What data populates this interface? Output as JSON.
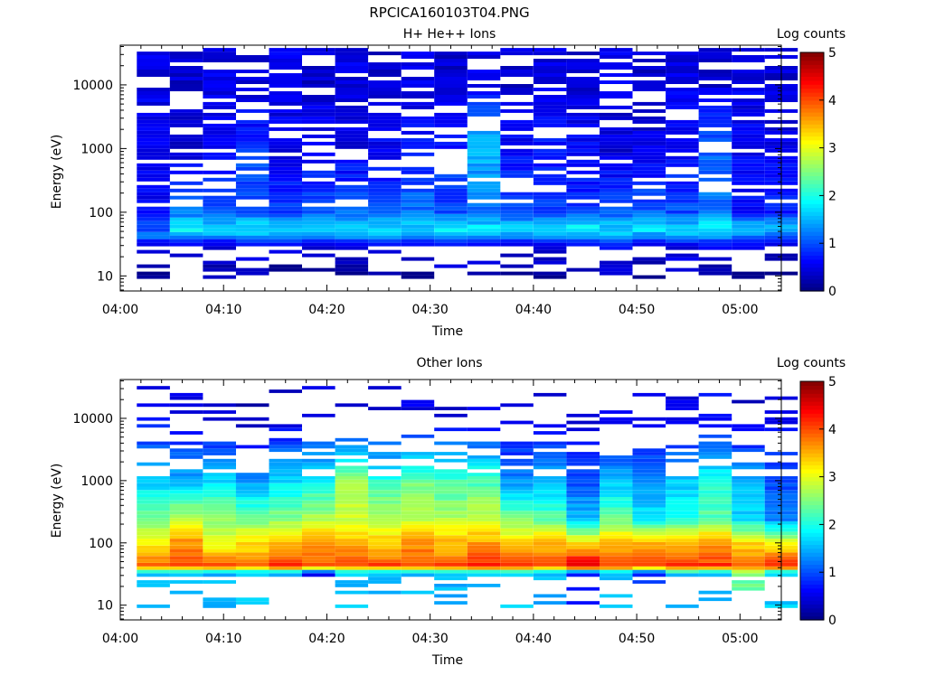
{
  "figure_title": "RPCICA160103T04.PNG",
  "chart_data": [
    {
      "type": "heatmap",
      "title": "H+ He++ Ions",
      "xlabel": "Time",
      "ylabel": "Energy (eV)",
      "x_tick_labels": [
        "04:00",
        "04:10",
        "04:20",
        "04:30",
        "04:40",
        "04:50",
        "05:00"
      ],
      "y_tick_labels": [
        "10",
        "100",
        "1000",
        "10000"
      ],
      "y_tick_values": [
        10,
        100,
        1000,
        10000
      ],
      "y_scale": "log",
      "ylim_eV": [
        5.8,
        42000
      ],
      "xlim_min": [
        0,
        64
      ],
      "time_bins_start_min": [
        1.6,
        4.8,
        8.0,
        11.2,
        14.4,
        17.6,
        20.8,
        24.0,
        27.2,
        30.4,
        33.6,
        36.8,
        40.0,
        43.2,
        46.4,
        49.6,
        52.8,
        56.0,
        59.2,
        62.4
      ],
      "energy_bands_eV": [
        10,
        15,
        25,
        33,
        42,
        55,
        75,
        100,
        150,
        250,
        400,
        700,
        1000,
        1500,
        2500,
        5000,
        10000,
        20000,
        35000
      ],
      "log_counts_summary": {
        "10": [
          0,
          0.3,
          0.2,
          0.2,
          0,
          0,
          0.1,
          0.2,
          0,
          0.2,
          0.2,
          0.2,
          0.2,
          0,
          0.3,
          0,
          0.3,
          0.2,
          0,
          0
        ],
        "33": [
          0.5,
          0.6,
          0.6,
          0.6,
          0.7,
          0.6,
          0.6,
          0.7,
          0.6,
          0.7,
          0.6,
          0.6,
          0.6,
          0.6,
          0.7,
          0.6,
          0.6,
          0.7,
          0.6,
          0.5
        ],
        "42": [
          1.2,
          1.5,
          1.4,
          1.5,
          1.4,
          1.3,
          1.5,
          1.4,
          1.5,
          1.3,
          1.4,
          1.5,
          1.4,
          1.4,
          1.5,
          1.3,
          1.5,
          1.4,
          1.3,
          1.2
        ],
        "55": [
          1.0,
          1.9,
          1.6,
          1.8,
          1.7,
          1.7,
          1.6,
          1.8,
          1.7,
          1.9,
          1.8,
          1.6,
          1.8,
          1.9,
          1.7,
          1.8,
          1.7,
          1.9,
          1.7,
          1.6
        ],
        "100": [
          0.6,
          1.2,
          1.0,
          1.1,
          0.9,
          1.0,
          1.1,
          1.0,
          1.2,
          1.0,
          1.1,
          1.0,
          1.0,
          0.9,
          1.0,
          1.1,
          1.0,
          1.2,
          0.7,
          0.8
        ],
        "1000": [
          0.5,
          0.4,
          0.5,
          0.9,
          0.5,
          0.6,
          0.5,
          0.6,
          0.7,
          0.8,
          1.6,
          0.6,
          0.7,
          0.6,
          0.4,
          0.5,
          0.6,
          1.1,
          0.6,
          0.5
        ],
        "10000": [
          0.5,
          0.4,
          0.5,
          0.4,
          0.5,
          0.4,
          0.5,
          0.4,
          0.5,
          0.4,
          0.5,
          0.4,
          0.5,
          0.4,
          0.5,
          0.4,
          0.5,
          0.4,
          0.5,
          0.4
        ]
      },
      "colorbar": {
        "label": "Log counts",
        "range": [
          0,
          5
        ],
        "ticks": [
          "0",
          "1",
          "2",
          "3",
          "4",
          "5"
        ]
      }
    },
    {
      "type": "heatmap",
      "title": "Other Ions",
      "xlabel": "Time",
      "ylabel": "Energy (eV)",
      "x_tick_labels": [
        "04:00",
        "04:10",
        "04:20",
        "04:30",
        "04:40",
        "04:50",
        "05:00"
      ],
      "y_tick_labels": [
        "10",
        "100",
        "1000",
        "10000"
      ],
      "y_tick_values": [
        10,
        100,
        1000,
        10000
      ],
      "y_scale": "log",
      "ylim_eV": [
        5.8,
        42000
      ],
      "xlim_min": [
        0,
        64
      ],
      "time_bins_start_min": [
        1.6,
        4.8,
        8.0,
        11.2,
        14.4,
        17.6,
        20.8,
        24.0,
        27.2,
        30.4,
        33.6,
        36.8,
        40.0,
        43.2,
        46.4,
        49.6,
        52.8,
        56.0,
        59.2,
        62.4
      ],
      "energy_bands_eV": [
        10,
        15,
        25,
        33,
        42,
        55,
        75,
        100,
        150,
        250,
        400,
        700,
        1000,
        1500,
        2500,
        5000,
        10000,
        20000,
        35000
      ],
      "log_counts_summary": {
        "33": [
          1.5,
          1.6,
          1.5,
          1.6,
          1.5,
          0.5,
          1.6,
          1.5,
          1.6,
          1.5,
          1.6,
          1.6,
          1.5,
          0.6,
          1.5,
          0.8,
          1.6,
          1.5,
          2.4,
          1.6
        ],
        "42": [
          3.9,
          4.1,
          4.2,
          4.0,
          4.3,
          4.2,
          4.1,
          4.2,
          4.0,
          4.1,
          4.3,
          4.2,
          4.1,
          4.7,
          4.2,
          4.0,
          4.3,
          4.2,
          4.1,
          4.4
        ],
        "55": [
          3.6,
          3.9,
          3.7,
          3.5,
          3.9,
          3.8,
          3.9,
          3.8,
          3.8,
          3.7,
          4.0,
          3.9,
          3.8,
          4.2,
          3.8,
          3.9,
          3.8,
          3.9,
          3.6,
          3.8
        ],
        "100": [
          3.2,
          3.7,
          3.0,
          3.3,
          3.4,
          3.6,
          3.5,
          3.4,
          3.7,
          3.5,
          3.6,
          3.4,
          3.5,
          3.2,
          3.4,
          3.6,
          3.5,
          3.7,
          3.3,
          3.1
        ],
        "250": [
          2.4,
          2.8,
          2.6,
          2.4,
          2.5,
          2.7,
          2.9,
          2.8,
          2.8,
          2.7,
          2.9,
          2.4,
          2.3,
          1.6,
          2.4,
          1.8,
          1.9,
          2.3,
          1.7,
          1.2
        ],
        "1000": [
          1.6,
          1.5,
          1.7,
          1.4,
          1.7,
          1.9,
          2.6,
          2.1,
          2.4,
          2.2,
          2.2,
          1.3,
          1.5,
          1.0,
          1.5,
          1.3,
          1.6,
          2.0,
          1.5,
          1.0
        ],
        "10000": [
          0.6,
          0.5,
          0.4,
          0.3,
          0.4,
          0.5,
          0.4,
          0.4,
          0.5,
          0.4,
          0.5,
          0.4,
          0.5,
          0.4,
          0.5,
          0.4,
          0.5,
          0.6,
          0.4,
          0.5
        ]
      },
      "colorbar": {
        "label": "Log counts",
        "range": [
          0,
          5
        ],
        "ticks": [
          "0",
          "1",
          "2",
          "3",
          "4",
          "5"
        ]
      }
    }
  ]
}
